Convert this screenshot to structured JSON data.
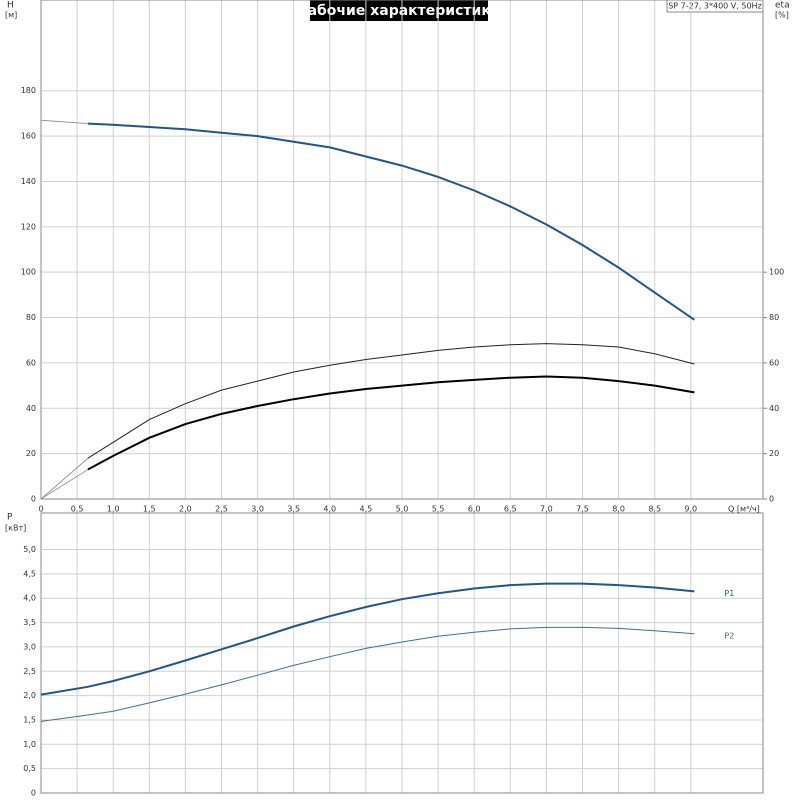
{
  "chart_data": [
    {
      "type": "line",
      "title": "Рабочие характеристики",
      "subtitle": "SP 7-27, 3*400 V, 50Hz",
      "ylabel": "H",
      "yunit": "[м]",
      "y2label": "eta",
      "y2unit": "[%]",
      "xlabel": "Q [м³/ч]",
      "xlim": [
        0,
        10
      ],
      "xticks": [
        0,
        {
          "value": 0.5,
          "label": "0,5"
        },
        {
          "value": 1,
          "label": "1,0"
        },
        {
          "value": 1.5,
          "label": "1,5"
        },
        {
          "value": 2,
          "label": "2,0"
        },
        {
          "value": 2.5,
          "label": "2,5"
        },
        {
          "value": 3,
          "label": "3,0"
        },
        {
          "value": 3.5,
          "label": "3,5"
        },
        {
          "value": 4,
          "label": "4,0"
        },
        {
          "value": 4.5,
          "label": "4,5"
        },
        {
          "value": 5,
          "label": "5,0"
        },
        {
          "value": 5.5,
          "label": "5,5"
        },
        {
          "value": 6,
          "label": "6,0"
        },
        {
          "value": 6.5,
          "label": "6,5"
        },
        {
          "value": 7,
          "label": "7,0"
        },
        {
          "value": 7.5,
          "label": "7,5"
        },
        {
          "value": 8,
          "label": "8,0"
        },
        {
          "value": 8.5,
          "label": "8,5"
        },
        {
          "value": 9,
          "label": "9,0"
        }
      ],
      "ylim": [
        0,
        220
      ],
      "yticks": [
        0,
        20,
        40,
        60,
        80,
        100,
        120,
        140,
        160,
        180
      ],
      "y2lim": [
        0,
        220
      ],
      "y2ticks": [
        0,
        20,
        40,
        60,
        80,
        100
      ],
      "grid": true,
      "series": [
        {
          "color": "#999999",
          "width": 1,
          "x": [
            0,
            0.65
          ],
          "values": [
            167,
            165.5
          ]
        },
        {
          "color": "#1f5591",
          "width": 2,
          "x": [
            0.65,
            1,
            1.5,
            2,
            2.5,
            3,
            3.5,
            4,
            4.5,
            5,
            5.5,
            6,
            6.5,
            7,
            7.5,
            8,
            8.5,
            9.05
          ],
          "values": [
            165.5,
            165,
            164,
            163,
            161.5,
            160,
            157.5,
            155,
            151,
            147,
            142,
            136,
            129,
            121,
            112,
            102,
            91,
            79
          ]
        },
        {
          "color": "#999999",
          "width": 1,
          "axis": "y2",
          "x": [
            0,
            0.65
          ],
          "values": [
            0,
            18
          ]
        },
        {
          "color": "#222222",
          "width": 1,
          "axis": "y2",
          "x": [
            0.65,
            1,
            1.5,
            2,
            2.5,
            3,
            3.5,
            4,
            4.5,
            5,
            5.5,
            6,
            6.5,
            7,
            7.5,
            8,
            8.5,
            9.05
          ],
          "values": [
            18,
            25,
            35,
            42,
            48,
            52,
            56,
            59,
            61.5,
            63.5,
            65.5,
            67,
            68,
            68.5,
            68,
            67,
            64,
            59.5
          ]
        },
        {
          "color": "#999999",
          "width": 1,
          "axis": "y2",
          "x": [
            0,
            0.65
          ],
          "values": [
            0,
            13
          ]
        },
        {
          "color": "#000000",
          "width": 2,
          "axis": "y2",
          "x": [
            0.65,
            1,
            1.5,
            2,
            2.5,
            3,
            3.5,
            4,
            4.5,
            5,
            5.5,
            6,
            6.5,
            7,
            7.5,
            8,
            8.5,
            9.05
          ],
          "values": [
            13,
            19,
            27,
            33,
            37.5,
            41,
            44,
            46.5,
            48.5,
            50,
            51.5,
            52.5,
            53.5,
            54,
            53.5,
            52,
            50,
            47
          ]
        }
      ]
    },
    {
      "type": "line",
      "ylabel": "P",
      "yunit": "[кВт]",
      "xlim": [
        0,
        10
      ],
      "ylim": [
        0,
        5.75
      ],
      "yticks": [
        0,
        {
          "value": 0.5,
          "label": "0,5"
        },
        {
          "value": 1,
          "label": "1,0"
        },
        {
          "value": 1.5,
          "label": "1,5"
        },
        {
          "value": 2,
          "label": "2,0"
        },
        {
          "value": 2.5,
          "label": "2,5"
        },
        {
          "value": 3,
          "label": "3,0"
        },
        {
          "value": 3.5,
          "label": "3,5"
        },
        {
          "value": 4,
          "label": "4,0"
        },
        {
          "value": 4.5,
          "label": "4,5"
        },
        {
          "value": 5,
          "label": "5,0"
        }
      ],
      "grid": true,
      "series": [
        {
          "name": "P1",
          "color": "#1f5591",
          "width": 2,
          "x": [
            0,
            0.65,
            1,
            1.5,
            2,
            2.5,
            3,
            3.5,
            4,
            4.5,
            5,
            5.5,
            6,
            6.5,
            7,
            7.5,
            8,
            8.5,
            9.05
          ],
          "values": [
            2.02,
            2.18,
            2.3,
            2.5,
            2.72,
            2.95,
            3.18,
            3.42,
            3.63,
            3.82,
            3.98,
            4.1,
            4.2,
            4.27,
            4.3,
            4.3,
            4.27,
            4.22,
            4.14
          ]
        },
        {
          "name": "P2",
          "color": "#3a6ea5",
          "width": 1,
          "x": [
            0,
            0.5,
            1,
            1.5,
            2,
            2.5,
            3,
            3.5,
            4,
            4.5,
            5,
            5.5,
            6,
            6.5,
            7,
            7.5,
            8,
            8.5,
            9.05
          ],
          "values": [
            1.47,
            1.57,
            1.68,
            1.85,
            2.03,
            2.22,
            2.42,
            2.62,
            2.8,
            2.97,
            3.1,
            3.22,
            3.3,
            3.37,
            3.4,
            3.4,
            3.38,
            3.33,
            3.27
          ]
        }
      ]
    }
  ]
}
